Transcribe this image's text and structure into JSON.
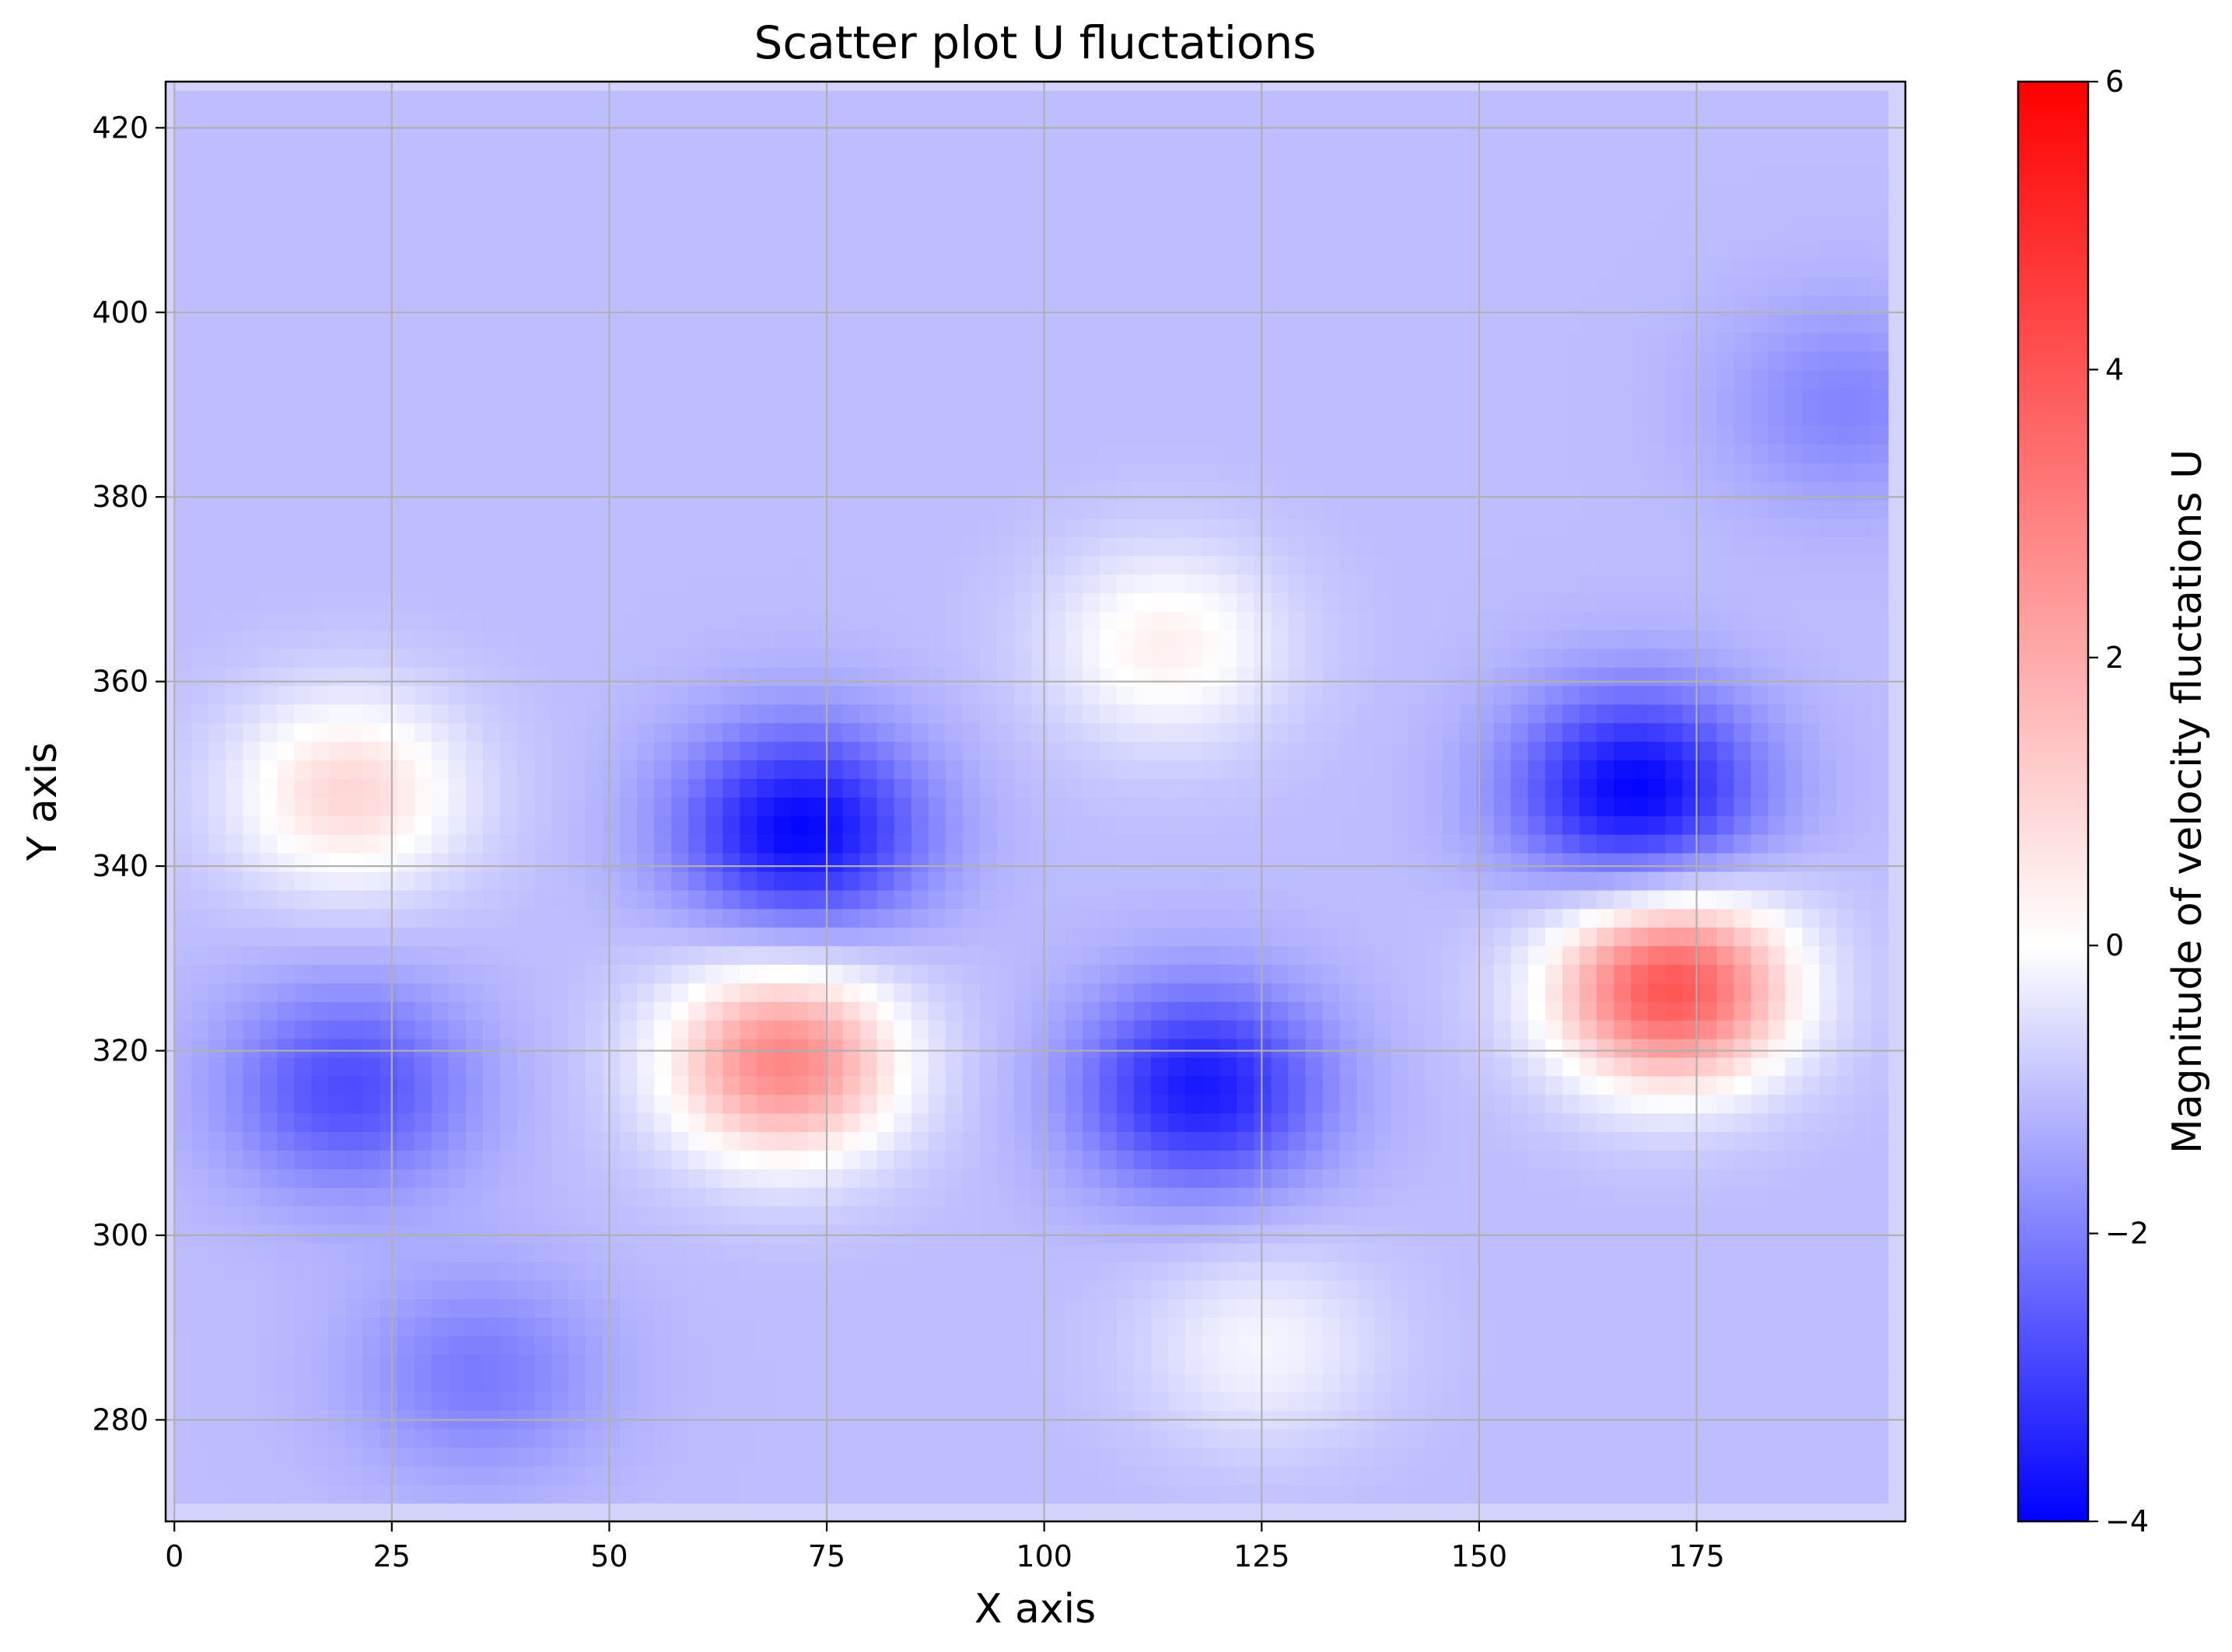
{
  "chart_data": {
    "type": "scatter",
    "title": "Scatter plot U fluctations",
    "xlabel": "X axis",
    "ylabel": "Y axis",
    "xlim": [
      -1,
      199
    ],
    "ylim": [
      269,
      425
    ],
    "x_ticks": [
      0,
      25,
      50,
      75,
      100,
      125,
      150,
      175
    ],
    "y_ticks": [
      280,
      300,
      320,
      340,
      360,
      380,
      400,
      420
    ],
    "grid": true,
    "colormap": [
      "#0000ff",
      "#ffffff",
      "#ff0000"
    ],
    "colorbar": {
      "label": "Magnitude of velocity fluctations U",
      "range": [
        -4,
        6
      ],
      "ticks": [
        -4,
        -2,
        0,
        2,
        4,
        6
      ],
      "tick_labels": [
        "−4",
        "−2",
        "0",
        "2",
        "4",
        "6"
      ]
    },
    "field_extent": {
      "x": [
        0,
        197
      ],
      "y": [
        271,
        424
      ]
    },
    "background_value": -0.3,
    "field_features": [
      {
        "x": 172,
        "y": 327,
        "value": 4.4
      },
      {
        "x": 70,
        "y": 319,
        "value": 3.4
      },
      {
        "x": 20,
        "y": 348,
        "value": 1.8
      },
      {
        "x": 114,
        "y": 364,
        "value": 1.3
      },
      {
        "x": 125,
        "y": 288,
        "value": 0.8
      },
      {
        "x": 168,
        "y": 348,
        "value": -4.0
      },
      {
        "x": 72,
        "y": 344,
        "value": -3.9
      },
      {
        "x": 118,
        "y": 316,
        "value": -3.5
      },
      {
        "x": 20,
        "y": 316,
        "value": -2.5
      },
      {
        "x": 35,
        "y": 285,
        "value": -1.6
      },
      {
        "x": 192,
        "y": 390,
        "value": -1.4
      }
    ]
  }
}
